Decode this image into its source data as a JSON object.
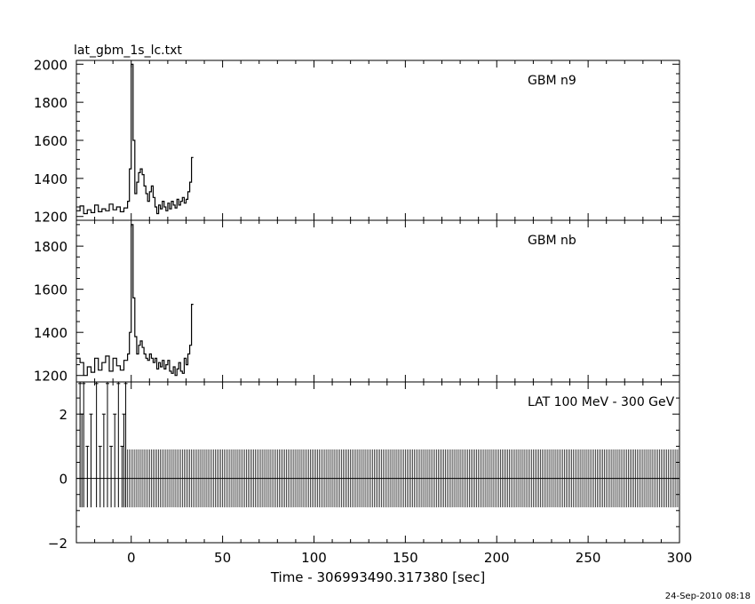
{
  "title": "lat_gbm_1s_lc.txt",
  "footer": "24-Sep-2010 08:18",
  "chart_data": [
    {
      "type": "line",
      "panel": "top",
      "label": "GBM n9",
      "xlim": [
        -30,
        300
      ],
      "ylim": [
        1180,
        2020
      ],
      "yticks": [
        1200,
        1400,
        1600,
        1800,
        2000
      ],
      "x": [
        -30,
        -28,
        -26,
        -24,
        -22,
        -20,
        -18,
        -16,
        -14,
        -12,
        -10,
        -8,
        -6,
        -4,
        -2,
        -1,
        0,
        1,
        2,
        3,
        4,
        5,
        6,
        7,
        8,
        9,
        10,
        11,
        12,
        13,
        14,
        15,
        16,
        17,
        18,
        19,
        20,
        21,
        22,
        23,
        24,
        25,
        26,
        27,
        28,
        29,
        30,
        31,
        32,
        33
      ],
      "values": [
        1230,
        1255,
        1215,
        1235,
        1220,
        1260,
        1225,
        1240,
        1230,
        1265,
        1235,
        1250,
        1225,
        1245,
        1280,
        1450,
        2000,
        1600,
        1320,
        1380,
        1430,
        1450,
        1420,
        1360,
        1320,
        1280,
        1330,
        1360,
        1300,
        1250,
        1215,
        1260,
        1240,
        1280,
        1250,
        1230,
        1270,
        1240,
        1280,
        1260,
        1245,
        1290,
        1260,
        1280,
        1300,
        1270,
        1290,
        1330,
        1380,
        1510
      ]
    },
    {
      "type": "line",
      "panel": "middle",
      "label": "GBM nb",
      "xlim": [
        -30,
        300
      ],
      "ylim": [
        1170,
        1920
      ],
      "yticks": [
        1200,
        1400,
        1600,
        1800
      ],
      "x": [
        -30,
        -28,
        -26,
        -24,
        -22,
        -20,
        -18,
        -16,
        -14,
        -12,
        -10,
        -8,
        -6,
        -4,
        -2,
        -1,
        0,
        1,
        2,
        3,
        4,
        5,
        6,
        7,
        8,
        9,
        10,
        11,
        12,
        13,
        14,
        15,
        16,
        17,
        18,
        19,
        20,
        21,
        22,
        23,
        24,
        25,
        26,
        27,
        28,
        29,
        30,
        31,
        32,
        33
      ],
      "values": [
        1280,
        1260,
        1200,
        1240,
        1215,
        1280,
        1225,
        1260,
        1290,
        1220,
        1280,
        1245,
        1225,
        1270,
        1300,
        1400,
        1900,
        1560,
        1380,
        1300,
        1340,
        1360,
        1330,
        1300,
        1280,
        1270,
        1300,
        1280,
        1260,
        1280,
        1230,
        1260,
        1240,
        1270,
        1230,
        1250,
        1270,
        1220,
        1210,
        1240,
        1200,
        1230,
        1260,
        1220,
        1210,
        1280,
        1250,
        1300,
        1340,
        1530
      ]
    },
    {
      "type": "bar",
      "panel": "bottom",
      "label": "LAT 100 MeV - 300 GeV",
      "xlim": [
        -30,
        300
      ],
      "ylim": [
        -2,
        3
      ],
      "yticks": [
        -2,
        0,
        2
      ],
      "xticks": [
        0,
        50,
        100,
        150,
        200,
        250,
        300
      ],
      "xlabel": "Time - 306993490.317380 [sec]",
      "spikes_x": [
        -28,
        -27,
        -26,
        -24,
        -22,
        -19,
        -17,
        -15,
        -13,
        -11,
        -9,
        -7,
        -5,
        -4,
        -3
      ],
      "spikes_y": [
        3,
        2,
        3,
        1,
        2,
        3,
        1,
        2,
        3,
        1,
        2,
        3,
        1,
        2,
        3
      ],
      "baseline": {
        "x_start": -3,
        "x_end": 300,
        "step": 1,
        "ymin": -0.9,
        "ymax": 0.9
      }
    }
  ]
}
